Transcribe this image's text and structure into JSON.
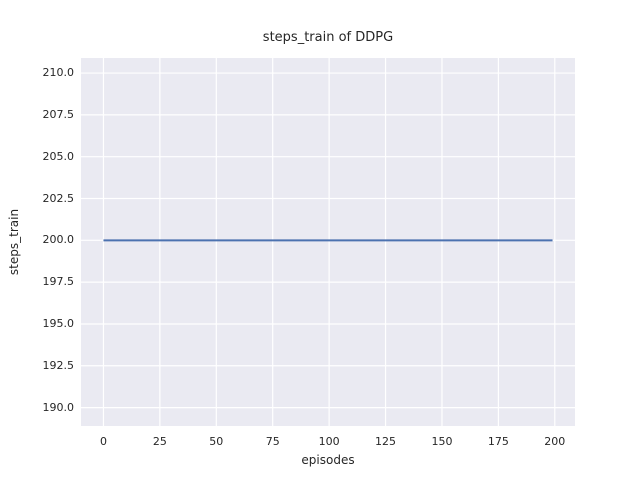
{
  "chart_data": {
    "type": "line",
    "title": "steps_train of DDPG",
    "xlabel": "episodes",
    "ylabel": "steps_train",
    "xlim": [
      -9.95,
      208.95
    ],
    "ylim": [
      188.9,
      210.9
    ],
    "xticks": {
      "values": [
        0,
        25,
        50,
        75,
        100,
        125,
        150,
        175,
        200
      ],
      "labels": [
        "0",
        "25",
        "50",
        "75",
        "100",
        "125",
        "150",
        "175",
        "200"
      ]
    },
    "yticks": {
      "values": [
        190.0,
        192.5,
        195.0,
        197.5,
        200.0,
        202.5,
        205.0,
        207.5,
        210.0
      ],
      "labels": [
        "190.0",
        "192.5",
        "195.0",
        "197.5",
        "200.0",
        "202.5",
        "205.0",
        "207.5",
        "210.0"
      ]
    },
    "grid": true,
    "legend": null,
    "series": [
      {
        "name": "steps_train",
        "color": "#4C72B0",
        "linewidth": 2,
        "x": [
          0,
          199
        ],
        "y": [
          200,
          200
        ]
      }
    ],
    "colors": {
      "plot_background": "#EAEAF2",
      "gridline": "#FFFFFF",
      "text": "#262626",
      "figure_background": "#FFFFFF"
    }
  }
}
